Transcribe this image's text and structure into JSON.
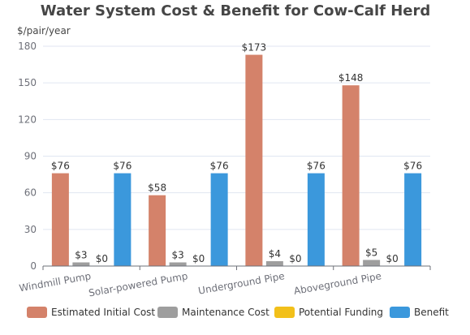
{
  "chart_data": {
    "type": "bar",
    "title": "Water System Cost & Benefit for Cow-Calf Herd",
    "ylabel": "$/pair/year",
    "ylim": [
      0,
      180
    ],
    "yticks": [
      0,
      30,
      60,
      90,
      120,
      150,
      180
    ],
    "categories": [
      "Windmill Pump",
      "Solar-powered Pump",
      "Underground Pipe",
      "Aboveground Pipe"
    ],
    "series": [
      {
        "name": "Estimated Initial Cost",
        "color": "#d4826a",
        "values": [
          76,
          58,
          173,
          148
        ],
        "labels": [
          "$76",
          "$58",
          "$173",
          "$148"
        ]
      },
      {
        "name": "Maintenance Cost",
        "color": "#9e9e9e",
        "values": [
          3,
          3,
          4,
          5
        ],
        "labels": [
          "$3",
          "$3",
          "$4",
          "$5"
        ]
      },
      {
        "name": "Potential Funding",
        "color": "#f2c01a",
        "values": [
          0,
          0,
          0,
          0
        ],
        "labels": [
          "$0",
          "$0",
          "$0",
          "$0"
        ]
      },
      {
        "name": "Benefit",
        "color": "#3b98dc",
        "values": [
          76,
          76,
          76,
          76
        ],
        "labels": [
          "$76",
          "$76",
          "$76",
          "$76"
        ]
      }
    ],
    "grid": true,
    "legend": "bottom"
  }
}
